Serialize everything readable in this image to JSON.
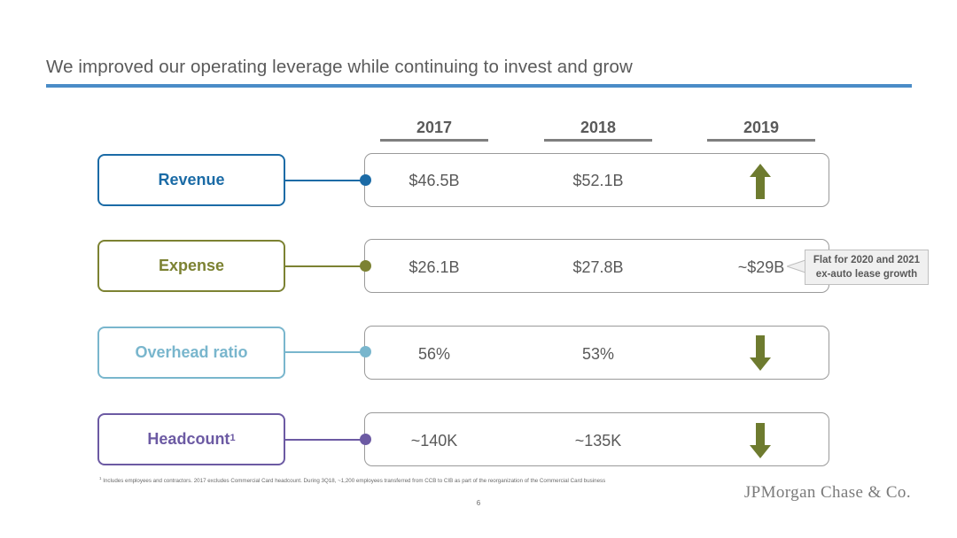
{
  "title": "We improved our operating leverage while continuing to invest and grow",
  "years": [
    "2017",
    "2018",
    "2019"
  ],
  "colors": {
    "revenue": "#1b6ba6",
    "expense": "#7c8232",
    "overhead": "#79b6cd",
    "headcount": "#6c5aa3",
    "arrow": "#6e7b2f",
    "rule": "#4a8cc7"
  },
  "rows": [
    {
      "label": "Revenue",
      "footnote_mark": "",
      "v2017": "$46.5B",
      "v2018": "$52.1B",
      "v2019": "",
      "v2019_icon": "up-arrow-icon"
    },
    {
      "label": "Expense",
      "footnote_mark": "",
      "v2017": "$26.1B",
      "v2018": "$27.8B",
      "v2019": "~$29B",
      "v2019_icon": ""
    },
    {
      "label": "Overhead ratio",
      "footnote_mark": "",
      "v2017": "56%",
      "v2018": "53%",
      "v2019": "",
      "v2019_icon": "down-arrow-icon"
    },
    {
      "label": "Headcount",
      "footnote_mark": "1",
      "v2017": "~140K",
      "v2018": "~135K",
      "v2019": "",
      "v2019_icon": "down-arrow-icon"
    }
  ],
  "callout": {
    "line1": "Flat for 2020 and 2021",
    "line2": "ex-auto lease growth"
  },
  "footnote": {
    "mark": "1",
    "text": "Includes employees and contractors. 2017 excludes Commercial Card headcount. During 3Q18, ~1,200 employees transferred from CCB to CIB as part of the reorganization of the Commercial Card business"
  },
  "page_number": "6",
  "logo": "JPMorgan Chase & Co."
}
